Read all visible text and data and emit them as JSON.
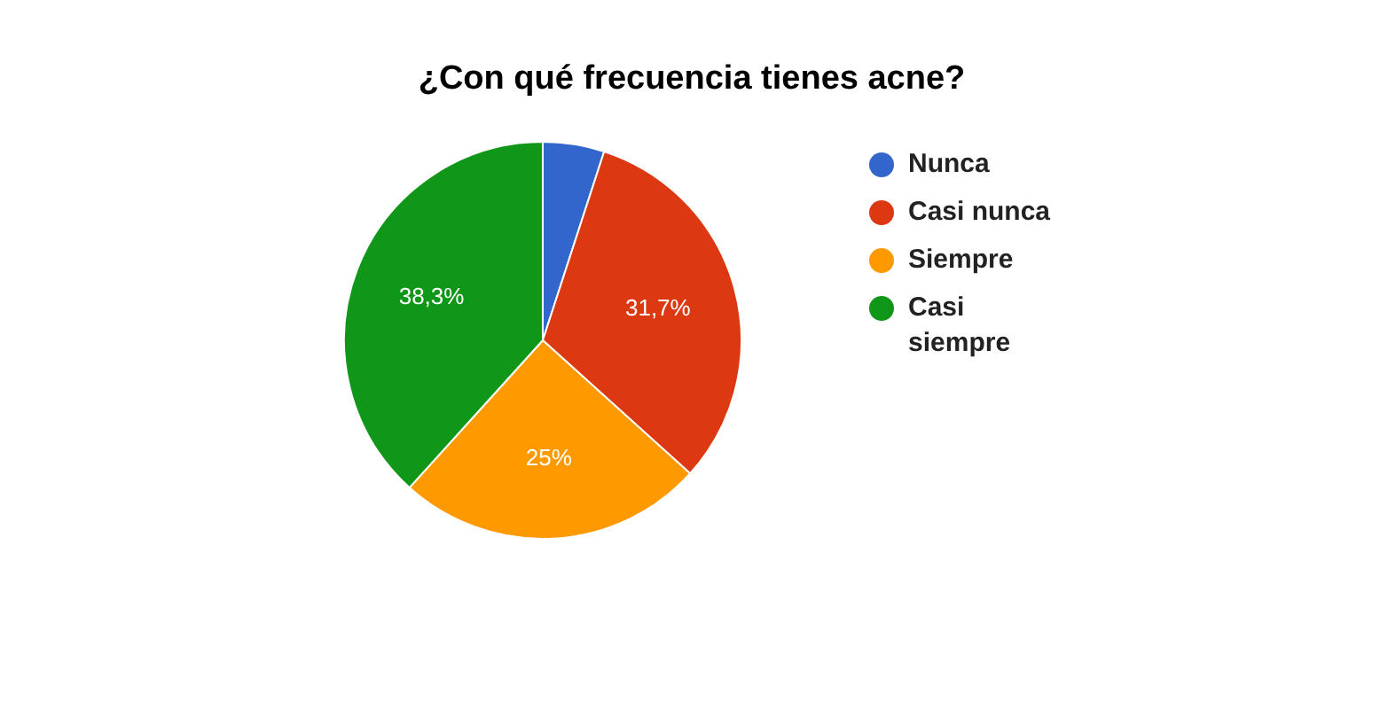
{
  "chart_data": {
    "type": "pie",
    "title": "¿Con qué frecuencia tienes acne?",
    "categories": [
      "Nunca",
      "Casi nunca",
      "Siempre",
      "Casi siempre"
    ],
    "values": [
      5,
      31.7,
      25,
      38.3
    ],
    "colors": [
      "#3366cc",
      "#dc3912",
      "#ff9900",
      "#109618"
    ],
    "value_labels": [
      null,
      "31,7%",
      "25%",
      "38,3%"
    ],
    "legend": "right"
  }
}
